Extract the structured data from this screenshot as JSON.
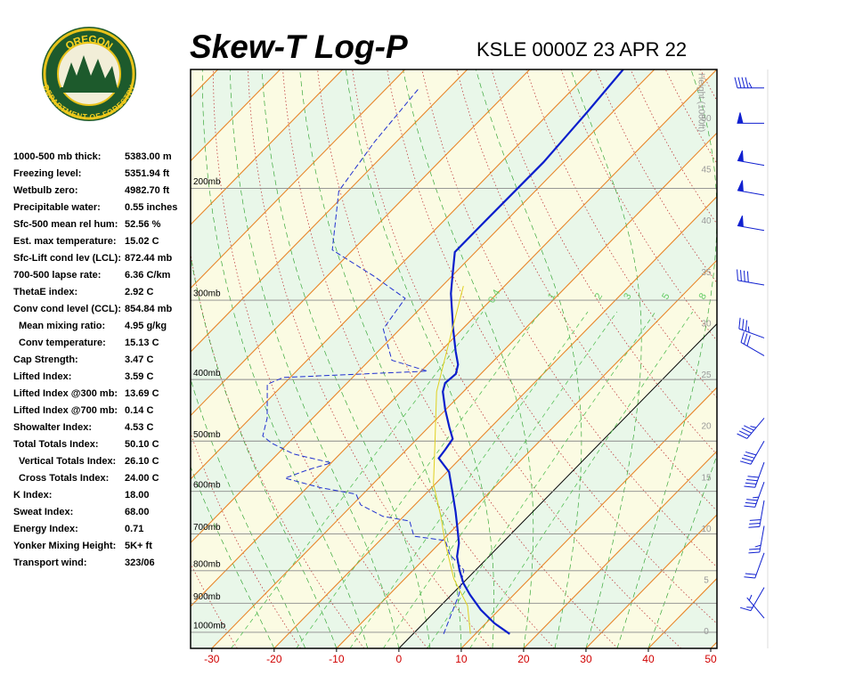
{
  "logo": {
    "top": "OREGON",
    "bottom": "DEPARTMENT OF FORESTRY"
  },
  "stats": [
    {
      "label": "1000-500 mb thick:",
      "value": "5383.00 m"
    },
    {
      "label": "Freezing level:",
      "value": "5351.94 ft"
    },
    {
      "label": "Wetbulb zero:",
      "value": "4982.70 ft"
    },
    {
      "label": "Precipitable water:",
      "value": "0.55 inches"
    },
    {
      "label": "Sfc-500 mean rel hum:",
      "value": "52.56 %"
    },
    {
      "label": "Est. max temperature:",
      "value": "15.02 C"
    },
    {
      "label": "Sfc-Lift cond lev (LCL):",
      "value": "872.44 mb"
    },
    {
      "label": "700-500 lapse rate:",
      "value": "6.36 C/km"
    },
    {
      "label": "ThetaE index:",
      "value": "2.92 C"
    },
    {
      "label": "Conv cond level (CCL):",
      "value": "854.84 mb"
    },
    {
      "label": "Mean mixing ratio:",
      "value": "4.95 g/kg",
      "indent": true
    },
    {
      "label": "Conv temperature:",
      "value": "15.13 C",
      "indent": true
    },
    {
      "label": "Cap Strength:",
      "value": "3.47 C"
    },
    {
      "label": "Lifted Index:",
      "value": "3.59 C"
    },
    {
      "label": "Lifted Index @300 mb:",
      "value": "13.69 C"
    },
    {
      "label": "Lifted Index @700 mb:",
      "value": "0.14 C"
    },
    {
      "label": "Showalter Index:",
      "value": "4.53 C"
    },
    {
      "label": "Total Totals Index:",
      "value": "50.10 C"
    },
    {
      "label": "Vertical Totals Index:",
      "value": "26.10 C",
      "indent": true
    },
    {
      "label": "Cross Totals Index:",
      "value": "24.00 C",
      "indent": true
    },
    {
      "label": "K Index:",
      "value": "18.00"
    },
    {
      "label": "Sweat Index:",
      "value": "68.00"
    },
    {
      "label": "Energy Index:",
      "value": "0.71"
    },
    {
      "label": "Yonker Mixing Height:",
      "value": "5K+ ft"
    },
    {
      "label": "Transport wind:",
      "value": "323/06"
    }
  ],
  "chart_data": {
    "type": "skewt",
    "title": "Skew-T Log-P",
    "subtitle": "KSLE 0000Z 23 APR 22",
    "xlim": [
      -33.4,
      51
    ],
    "xticks": [
      -30,
      -20,
      -10,
      0,
      10,
      20,
      30,
      40,
      50
    ],
    "ylim": [
      1060,
      130
    ],
    "log_y": true,
    "yticks": [
      {
        "value": 1000,
        "label": "1000mb"
      },
      {
        "value": 900,
        "label": "900mb"
      },
      {
        "value": 800,
        "label": "800mb"
      },
      {
        "value": 700,
        "label": "700mb"
      },
      {
        "value": 600,
        "label": "600mb"
      },
      {
        "value": 500,
        "label": "500mb"
      },
      {
        "value": 400,
        "label": "400mb"
      },
      {
        "value": 300,
        "label": "300mb"
      },
      {
        "value": 200,
        "label": "200mb"
      }
    ],
    "y2label": "Height (1000ft)",
    "y2lim": [
      -1.6,
      54.8
    ],
    "y2ticks": [
      0,
      5,
      10,
      15,
      20,
      25,
      30,
      35,
      40,
      45,
      50
    ],
    "mixing_ratios": [
      0.4,
      1,
      2,
      3,
      5,
      8
    ],
    "series": [
      {
        "color": "#0a1ecc",
        "style": "solid",
        "pressure": [
          1006,
          968,
          922,
          873,
          837,
          798,
          760,
          724,
          690,
          647,
          606,
          559,
          532,
          516,
          496,
          476,
          446,
          418,
          405,
          392,
          379,
          361,
          333,
          293,
          275,
          252,
          223,
          182,
          151,
          130
        ],
        "values": [
          15.5,
          11.4,
          7.1,
          3.0,
          0.1,
          -2.6,
          -5.1,
          -6.9,
          -9.2,
          -12.3,
          -15.6,
          -19.7,
          -23.5,
          -23.8,
          -24.3,
          -26.6,
          -30.1,
          -33.3,
          -34.3,
          -34.0,
          -35.1,
          -37.6,
          -41.5,
          -47.4,
          -49.9,
          -53.3,
          -53.3,
          -53.2,
          -54.1,
          -55.0
        ]
      },
      {
        "color": "#2030d0",
        "style": "dashed",
        "pressure": [
          1006,
          873,
          798,
          753,
          717,
          706,
          668,
          657,
          630,
          606,
          592,
          572,
          555,
          541,
          524,
          504,
          491,
          460,
          407,
          397,
          388,
          373,
          333,
          298,
          275,
          250,
          202,
          169,
          139
        ],
        "values": [
          4.9,
          1.2,
          -1.9,
          -6.7,
          -9.5,
          -15.2,
          -18.3,
          -23.3,
          -28.7,
          -31.1,
          -37.8,
          -45.0,
          -42.7,
          -40.0,
          -47.4,
          -52.6,
          -55.2,
          -57.3,
          -62.6,
          -61.1,
          -39.0,
          -46.4,
          -52.7,
          -54.0,
          -62.5,
          -73.3,
          -81.5,
          -83.5,
          -84.8
        ]
      },
      {
        "color": "#e0d020",
        "style": "solid",
        "pressure": [
          1006,
          908,
          824,
          724,
          657,
          584,
          507,
          418,
          367,
          285
        ],
        "values": [
          9.2,
          4.3,
          -2.1,
          -9.1,
          -14.0,
          -20.3,
          -26.2,
          -34.3,
          -38.5,
          -46.6
        ]
      }
    ],
    "winds": {
      "pressure": [
        139,
        158,
        184,
        205,
        233,
        284,
        344,
        367,
        460,
        500,
        540,
        580,
        620,
        680,
        750,
        850,
        950
      ],
      "direction": [
        270,
        270,
        280,
        280,
        280,
        280,
        290,
        300,
        220,
        210,
        200,
        200,
        190,
        190,
        200,
        210,
        320
      ],
      "speed": [
        45,
        50,
        55,
        60,
        55,
        40,
        35,
        30,
        45,
        40,
        40,
        35,
        30,
        25,
        20,
        15,
        5
      ]
    }
  }
}
